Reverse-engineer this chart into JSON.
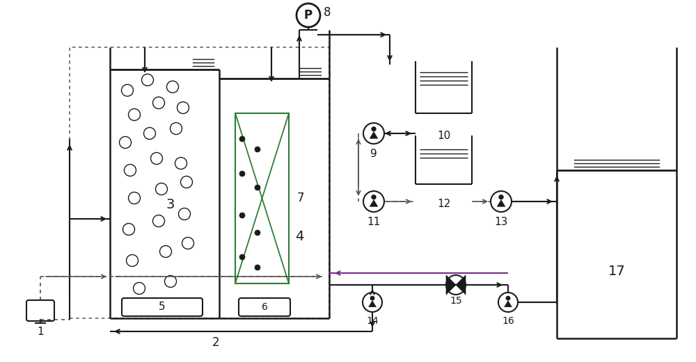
{
  "bg_color": "#ffffff",
  "line_color": "#1a1a1a",
  "dash_color": "#555555",
  "purple_color": "#7B2D8B",
  "green_color": "#2E7D32",
  "fig_width": 10.0,
  "fig_height": 5.21
}
